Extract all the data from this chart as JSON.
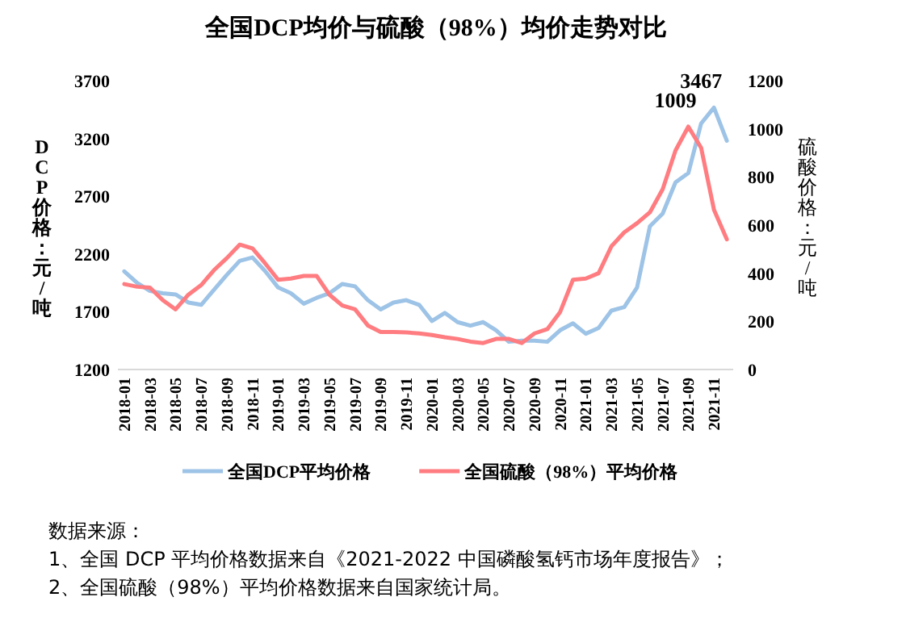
{
  "chart_data": {
    "type": "line",
    "title": "全国DCP均价与硫酸（98%）均价走势对比",
    "categories": [
      "2018-01",
      null,
      "2018-03",
      null,
      "2018-05",
      null,
      "2018-07",
      null,
      "2018-09",
      null,
      "2018-11",
      null,
      "2019-01",
      null,
      "2019-03",
      null,
      "2019-05",
      null,
      "2019-07",
      null,
      "2019-09",
      null,
      "2019-11",
      null,
      "2020-01",
      null,
      "2020-03",
      null,
      "2020-05",
      null,
      "2020-07",
      null,
      "2020-09",
      null,
      "2020-11",
      null,
      "2021-01",
      null,
      "2021-03",
      null,
      "2021-05",
      null,
      "2021-07",
      null,
      "2021-09",
      null,
      "2021-11",
      null
    ],
    "ylabel": "DCP价格：元/吨",
    "y2label": "硫酸价格：元/吨",
    "ylim": [
      1200,
      3700
    ],
    "yticks": [
      1200,
      1700,
      2200,
      2700,
      3200,
      3700
    ],
    "y2lim": [
      0,
      1200
    ],
    "y2ticks": [
      0,
      200,
      400,
      600,
      800,
      1000,
      1200
    ],
    "legend": "bottom",
    "series": [
      {
        "name": "全国DCP平均价格",
        "color": "#9dc3e6",
        "values": [
          2050,
          1950,
          1880,
          1860,
          1850,
          1780,
          1760,
          1890,
          2020,
          2140,
          2170,
          2050,
          1910,
          1860,
          1770,
          1820,
          1860,
          1940,
          1920,
          1800,
          1720,
          1780,
          1800,
          1760,
          1620,
          1690,
          1610,
          1580,
          1610,
          1540,
          1440,
          1450,
          1450,
          1440,
          1540,
          1600,
          1510,
          1560,
          1710,
          1740,
          1910,
          2440,
          2550,
          2820,
          2900,
          3330,
          3467,
          3180
        ],
        "value_labels": [
          null,
          null,
          null,
          null,
          null,
          null,
          null,
          null,
          null,
          null,
          null,
          null,
          null,
          null,
          null,
          null,
          null,
          null,
          null,
          null,
          null,
          null,
          null,
          null,
          null,
          null,
          null,
          null,
          null,
          null,
          null,
          null,
          null,
          null,
          null,
          null,
          null,
          null,
          null,
          null,
          null,
          null,
          null,
          null,
          null,
          null,
          "3467",
          null
        ]
      },
      {
        "name": "全国硫酸（98%）平均价格",
        "color": "#ff7c80",
        "axis": "y2",
        "values": [
          355,
          344,
          340,
          288,
          250,
          311,
          351,
          413,
          463,
          519,
          503,
          440,
          373,
          378,
          389,
          389,
          311,
          266,
          250,
          183,
          156,
          156,
          154,
          150,
          143,
          134,
          127,
          116,
          110,
          127,
          127,
          110,
          150,
          168,
          239,
          373,
          378,
          400,
          512,
          570,
          608,
          653,
          749,
          910,
          1009,
          921,
          664,
          541
        ],
        "value_labels": [
          null,
          null,
          null,
          null,
          null,
          null,
          null,
          null,
          null,
          null,
          null,
          null,
          null,
          null,
          null,
          null,
          null,
          null,
          null,
          null,
          null,
          null,
          null,
          null,
          null,
          null,
          null,
          null,
          null,
          null,
          null,
          null,
          null,
          null,
          null,
          null,
          null,
          null,
          null,
          null,
          null,
          null,
          null,
          null,
          "1009",
          null,
          null,
          null
        ]
      }
    ],
    "annotations": [
      "数据来源：",
      "1、全国 DCP 平均价格数据来自《2021-2022 中国磷酸氢钙市场年度报告》；",
      "2、全国硫酸（98%）平均价格数据来自国家统计局。"
    ]
  }
}
